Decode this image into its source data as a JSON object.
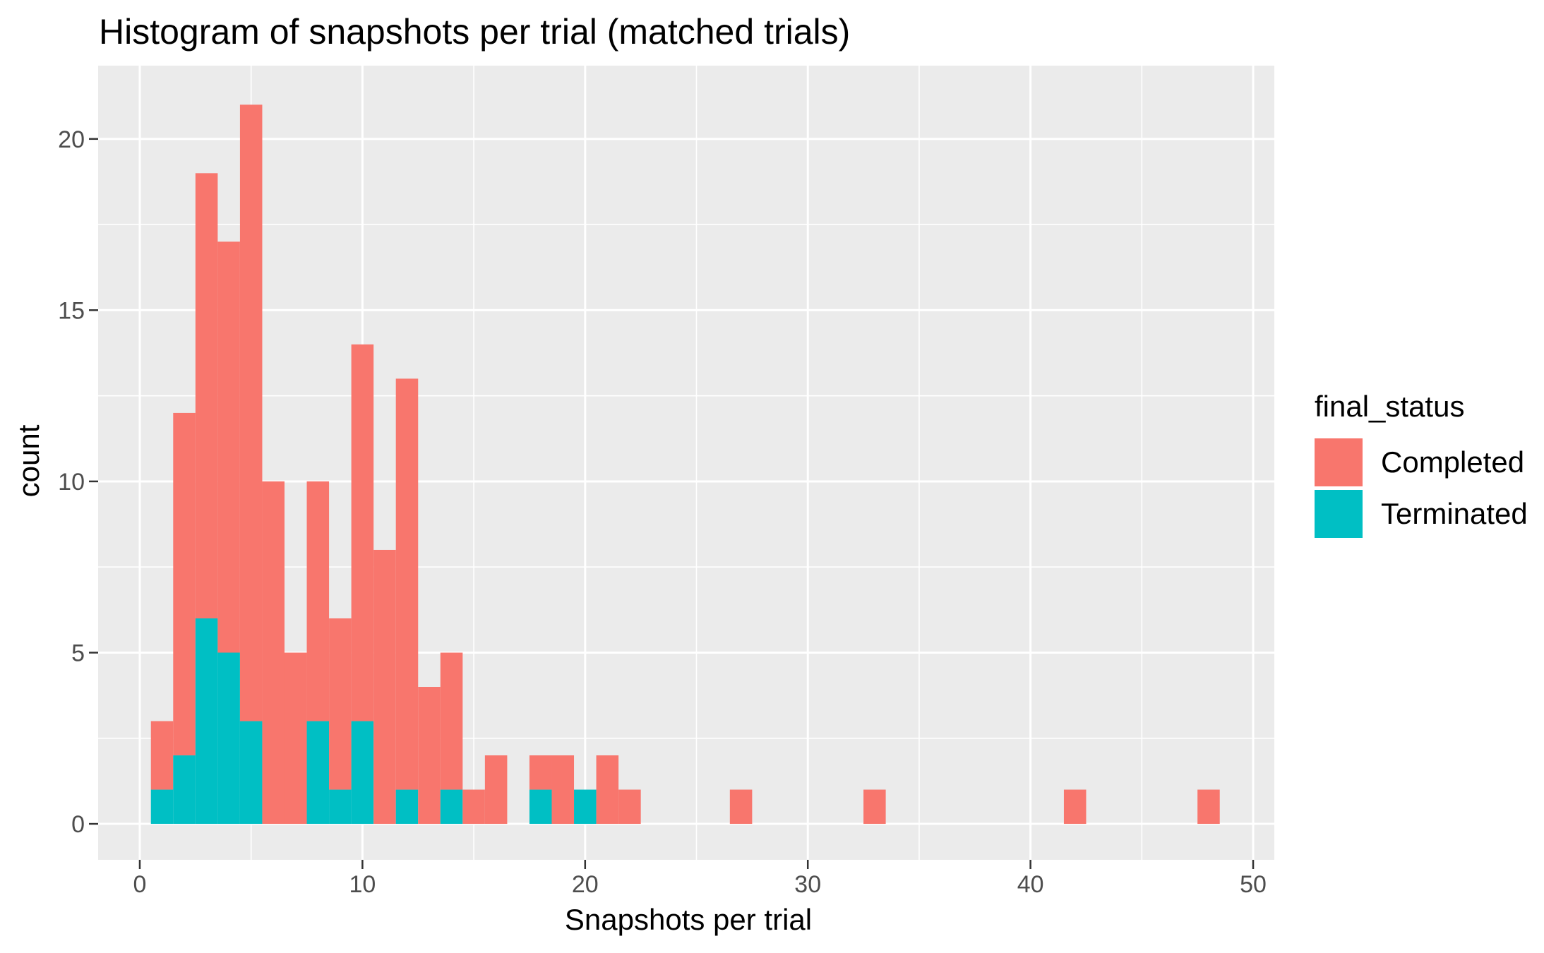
{
  "title": "Histogram of snapshots per trial (matched trials)",
  "x_axis": {
    "title": "Snapshots per trial",
    "ticks": [
      0,
      10,
      20,
      30,
      40,
      50
    ],
    "minor_ticks": [
      5,
      15,
      25,
      35,
      45
    ]
  },
  "y_axis": {
    "title": "count",
    "ticks": [
      0,
      5,
      10,
      15,
      20
    ],
    "minor_ticks": [
      2.5,
      7.5,
      12.5,
      17.5
    ]
  },
  "legend": {
    "title": "final_status",
    "items": [
      {
        "label": "Completed",
        "color": "#F8766D"
      },
      {
        "label": "Terminated",
        "color": "#00BFC4"
      }
    ]
  },
  "chart_data": {
    "type": "bar",
    "subtype": "stacked-histogram",
    "title": "Histogram of snapshots per trial (matched trials)",
    "xlabel": "Snapshots per trial",
    "ylabel": "count",
    "binwidth": 1,
    "stack_order_bottom_to_top": [
      "Terminated",
      "Completed"
    ],
    "bins": [
      {
        "x": 1,
        "completed": 2,
        "terminated": 1
      },
      {
        "x": 2,
        "completed": 10,
        "terminated": 2
      },
      {
        "x": 3,
        "completed": 13,
        "terminated": 6
      },
      {
        "x": 4,
        "completed": 12,
        "terminated": 5
      },
      {
        "x": 5,
        "completed": 18,
        "terminated": 3
      },
      {
        "x": 6,
        "completed": 10,
        "terminated": 0
      },
      {
        "x": 7,
        "completed": 5,
        "terminated": 0
      },
      {
        "x": 8,
        "completed": 7,
        "terminated": 3
      },
      {
        "x": 9,
        "completed": 5,
        "terminated": 1
      },
      {
        "x": 10,
        "completed": 11,
        "terminated": 3
      },
      {
        "x": 11,
        "completed": 8,
        "terminated": 0
      },
      {
        "x": 12,
        "completed": 12,
        "terminated": 1
      },
      {
        "x": 13,
        "completed": 4,
        "terminated": 0
      },
      {
        "x": 14,
        "completed": 4,
        "terminated": 1
      },
      {
        "x": 15,
        "completed": 1,
        "terminated": 0
      },
      {
        "x": 16,
        "completed": 2,
        "terminated": 0
      },
      {
        "x": 18,
        "completed": 1,
        "terminated": 1
      },
      {
        "x": 19,
        "completed": 2,
        "terminated": 0
      },
      {
        "x": 20,
        "completed": 0,
        "terminated": 1
      },
      {
        "x": 21,
        "completed": 2,
        "terminated": 0
      },
      {
        "x": 22,
        "completed": 1,
        "terminated": 0
      },
      {
        "x": 27,
        "completed": 1,
        "terminated": 0
      },
      {
        "x": 33,
        "completed": 1,
        "terminated": 0
      },
      {
        "x": 42,
        "completed": 1,
        "terminated": 0
      },
      {
        "x": 48,
        "completed": 1,
        "terminated": 0
      }
    ],
    "xlim": [
      -1.87,
      50.95
    ],
    "ylim": [
      -1.05,
      22.14
    ],
    "colors": {
      "completed": "#F8766D",
      "terminated": "#00BFC4",
      "panel_background": "#EBEBEB",
      "grid": "#FFFFFF",
      "tick_text": "#4D4D4D",
      "tick_mark": "#333333"
    },
    "grid": true,
    "legend_position": "right"
  }
}
